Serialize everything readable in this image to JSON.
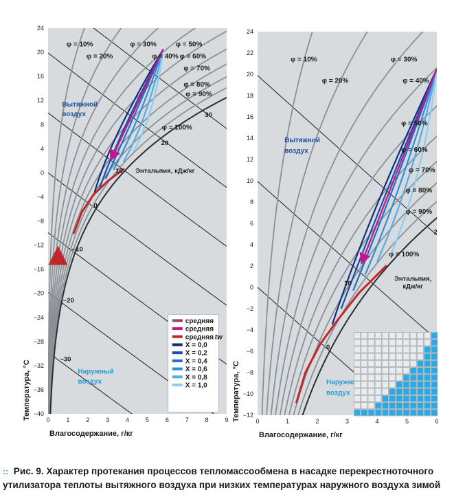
{
  "caption": {
    "marker": "::",
    "label": "Рис. 9.",
    "text": "Характер протекания процессов тепломассообмена в насадке перекрестноточного утилизатора теплоты вытяжного воздуха при низких температурах наружного воздуха зимой"
  },
  "colors": {
    "plot_bg": "#d7dbdd",
    "phi_curve": "#8a9096",
    "enthalpy_line": "#1c1c1c",
    "saturation": "#2b2d31",
    "red_process": "#c0272d",
    "magenta_process": "#c2188d",
    "exhaust_label": "#1f4fa0",
    "outdoor_label": "#2b9bd8",
    "x_series": [
      "#0d2f7a",
      "#164fa8",
      "#1e6cc8",
      "#2f8edc",
      "#52ade6",
      "#8ccdf2"
    ],
    "grid_fill": "#b5b9bc",
    "grid_water": "#29a9e6"
  },
  "chart_data": [
    {
      "type": "line",
      "title": "",
      "xlabel": "Влагосодержание, г/кг",
      "ylabel": "Температура, °С",
      "xlim": [
        0,
        9
      ],
      "ylim": [
        -40,
        24
      ],
      "x_ticks": [
        "0",
        "1",
        "2",
        "3",
        "4",
        "5",
        "6",
        "7",
        "8",
        "9"
      ],
      "y_ticks": [
        "24",
        "20",
        "16",
        "12",
        "8",
        "4",
        "0",
        "−4",
        "−8",
        "−12",
        "−16",
        "−20",
        "−24",
        "−28",
        "−32",
        "−36",
        "−40"
      ],
      "y_tick_values": [
        24,
        20,
        16,
        12,
        8,
        4,
        0,
        -4,
        -8,
        -12,
        -16,
        -20,
        -24,
        -28,
        -32,
        -36,
        -40
      ],
      "rh_curves": [
        {
          "label": "φ = 10%",
          "rh": 0.1,
          "lx": 1.6,
          "ly": 21
        },
        {
          "label": "φ = 20%",
          "rh": 0.2,
          "lx": 2.6,
          "ly": 19
        },
        {
          "label": "φ = 30%",
          "rh": 0.3,
          "lx": 4.8,
          "ly": 21
        },
        {
          "label": "φ = 40%",
          "rh": 0.4,
          "lx": 5.9,
          "ly": 19
        },
        {
          "label": "φ = 50%",
          "rh": 0.5,
          "lx": 7.1,
          "ly": 21
        },
        {
          "label": "φ = 60%",
          "rh": 0.6,
          "lx": 7.3,
          "ly": 19
        },
        {
          "label": "φ = 70%",
          "rh": 0.7,
          "lx": 7.5,
          "ly": 17
        },
        {
          "label": "φ = 80%",
          "rh": 0.8,
          "lx": 7.5,
          "ly": 14.3
        },
        {
          "label": "φ = 90%",
          "rh": 0.9,
          "lx": 7.6,
          "ly": 12.7
        },
        {
          "label": "φ = 100%",
          "rh": 1.0,
          "lx": 6.5,
          "ly": 7.2
        }
      ],
      "enthalpy_lines": [
        {
          "label": "30",
          "h": 30,
          "lx": 7.9,
          "ly": 9.3
        },
        {
          "label": "20",
          "h": 20,
          "lx": 5.7,
          "ly": 4.6
        },
        {
          "label": "10",
          "h": 10,
          "lx": 3.4,
          "ly": 0.0
        },
        {
          "label": "0",
          "h": 0,
          "lx": 2.3,
          "ly": -5.8
        },
        {
          "label": "−10",
          "h": -10,
          "lx": 1.2,
          "ly": -13.0
        },
        {
          "label": "−20",
          "h": -20,
          "lx": 0.75,
          "ly": -21.5
        },
        {
          "label": "−30",
          "h": -30,
          "lx": 0.6,
          "ly": -31.3
        }
      ],
      "enthalpy_title": "Энтальпия, кДж/кг",
      "enthalpy_title_pos": [
        5.9,
        0.0
      ],
      "regions": [
        {
          "label": "Вытяжной",
          "x": 0.7,
          "y": 11,
          "kind": "exhaust"
        },
        {
          "label": "воздух",
          "x": 0.7,
          "y": 9.4,
          "kind": "exhaust"
        },
        {
          "label": "Наружный",
          "x": 1.5,
          "y": -33.3,
          "kind": "outdoor"
        },
        {
          "label": "воздух",
          "x": 1.5,
          "y": -35.0,
          "kind": "outdoor"
        }
      ],
      "legend": [
        {
          "label": "средняя",
          "subscript": "",
          "kind": "grad-red-blue"
        },
        {
          "label": "средняя",
          "subscript": "",
          "kind": "magenta"
        },
        {
          "label": "средняя",
          "subscript": "tw",
          "kind": "red"
        },
        {
          "label": "X = 0,0",
          "kind": "x0"
        },
        {
          "label": "X = 0,2",
          "kind": "x1"
        },
        {
          "label": "X = 0,4",
          "kind": "x2"
        },
        {
          "label": "X = 0,6",
          "kind": "x3"
        },
        {
          "label": "X = 0,8",
          "kind": "x4"
        },
        {
          "label": "X = 1,0",
          "kind": "x5"
        }
      ],
      "legend_position": "bottom-right",
      "process": {
        "exhaust_point": [
          5.8,
          20.5
        ],
        "cooled_end": [
          3.2,
          2.4
        ],
        "outdoor_start": [
          0.5,
          -40
        ],
        "outdoor_end": [
          0.5,
          -13
        ],
        "wall_t_curve": [
          [
            1.3,
            -10
          ],
          [
            1.7,
            -6.5
          ],
          [
            2.3,
            -3.6
          ],
          [
            3.0,
            -1.4
          ],
          [
            3.8,
            0.6
          ]
        ],
        "fan_x_series_ends": [
          [
            2.3,
            -3.8
          ],
          [
            2.6,
            -2.5
          ],
          [
            2.9,
            -1.0
          ],
          [
            3.3,
            0.5
          ],
          [
            3.8,
            1.8
          ],
          [
            4.3,
            3.5
          ]
        ],
        "fan_x_series_mids": [
          [
            3.0,
            5.0
          ],
          [
            3.5,
            5.9
          ],
          [
            4.0,
            6.8
          ],
          [
            4.5,
            7.8
          ],
          [
            5.0,
            8.8
          ],
          [
            5.4,
            10.0
          ]
        ]
      }
    },
    {
      "type": "line",
      "title": "",
      "xlabel": "Влагосодержание, г/кг",
      "ylabel": "Температура, °С",
      "xlim": [
        0,
        6
      ],
      "ylim": [
        -12,
        24
      ],
      "x_ticks": [
        "0",
        "1",
        "2",
        "3",
        "4",
        "5",
        "6"
      ],
      "y_ticks": [
        "24",
        "22",
        "20",
        "18",
        "16",
        "14",
        "12",
        "10",
        "8",
        "6",
        "4",
        "2",
        "0",
        "−2",
        "−4",
        "−6",
        "−8",
        "−10",
        "−12"
      ],
      "y_tick_values": [
        24,
        22,
        20,
        18,
        16,
        14,
        12,
        10,
        8,
        6,
        4,
        2,
        0,
        -2,
        -4,
        -6,
        -8,
        -10,
        -12
      ],
      "rh_curves": [
        {
          "label": "φ = 10%",
          "rh": 0.1,
          "lx": 1.55,
          "ly": 21.2
        },
        {
          "label": "φ = 20%",
          "rh": 0.2,
          "lx": 2.6,
          "ly": 19.2
        },
        {
          "label": "φ = 30%",
          "rh": 0.3,
          "lx": 4.9,
          "ly": 21.2
        },
        {
          "label": "φ = 40%",
          "rh": 0.4,
          "lx": 5.3,
          "ly": 19.2
        },
        {
          "label": "φ = 50%",
          "rh": 0.5,
          "lx": 5.25,
          "ly": 15.2
        },
        {
          "label": "φ = 60%",
          "rh": 0.6,
          "lx": 5.25,
          "ly": 12.7
        },
        {
          "label": "φ = 70%",
          "rh": 0.7,
          "lx": 5.5,
          "ly": 10.8
        },
        {
          "label": "φ = 80%",
          "rh": 0.8,
          "lx": 5.4,
          "ly": 8.9
        },
        {
          "label": "φ = 90%",
          "rh": 0.9,
          "lx": 5.4,
          "ly": 6.9
        },
        {
          "label": "φ = 100%",
          "rh": 1.0,
          "lx": 4.9,
          "ly": 2.9
        }
      ],
      "enthalpy_lines": [
        {
          "label": "20",
          "h": 20,
          "lx": 5.9,
          "ly": 5.0
        },
        {
          "label": "10",
          "h": 10,
          "lx": 2.9,
          "ly": 0.2
        },
        {
          "label": "0",
          "h": 0,
          "lx": 2.3,
          "ly": -5.8
        }
      ],
      "enthalpy_title": "Энтальпия, кДж/кг",
      "enthalpy_title_pos": [
        5.2,
        0.6
      ],
      "regions": [
        {
          "label": "Вытяжной",
          "x": 0.9,
          "y": 13.6,
          "kind": "exhaust"
        },
        {
          "label": "воздух",
          "x": 0.9,
          "y": 12.6,
          "kind": "exhaust"
        },
        {
          "label": "Наружный",
          "x": 2.3,
          "y": -9.1,
          "kind": "outdoor"
        },
        {
          "label": "воздух",
          "x": 2.3,
          "y": -10.1,
          "kind": "outdoor"
        }
      ],
      "process": {
        "exhaust_point": [
          6.0,
          20.5
        ],
        "cooled_end": [
          3.5,
          2.4
        ],
        "wall_t_curve": [
          [
            1.3,
            -10.8
          ],
          [
            1.6,
            -8.0
          ],
          [
            2.1,
            -5.3
          ],
          [
            2.7,
            -3.0
          ],
          [
            3.4,
            -0.5
          ],
          [
            4.3,
            2.0
          ]
        ],
        "fan_x_series_ends": [
          [
            2.5,
            -3.5
          ],
          [
            2.8,
            -2.0
          ],
          [
            3.2,
            -0.3
          ],
          [
            3.6,
            1.2
          ],
          [
            4.0,
            2.4
          ],
          [
            4.5,
            3.3
          ]
        ],
        "fan_x_series_mids": [
          [
            3.6,
            6.0
          ],
          [
            4.0,
            7.0
          ],
          [
            4.4,
            8.0
          ],
          [
            4.8,
            9.0
          ],
          [
            5.2,
            10.0
          ],
          [
            5.6,
            11.0
          ]
        ]
      }
    }
  ]
}
